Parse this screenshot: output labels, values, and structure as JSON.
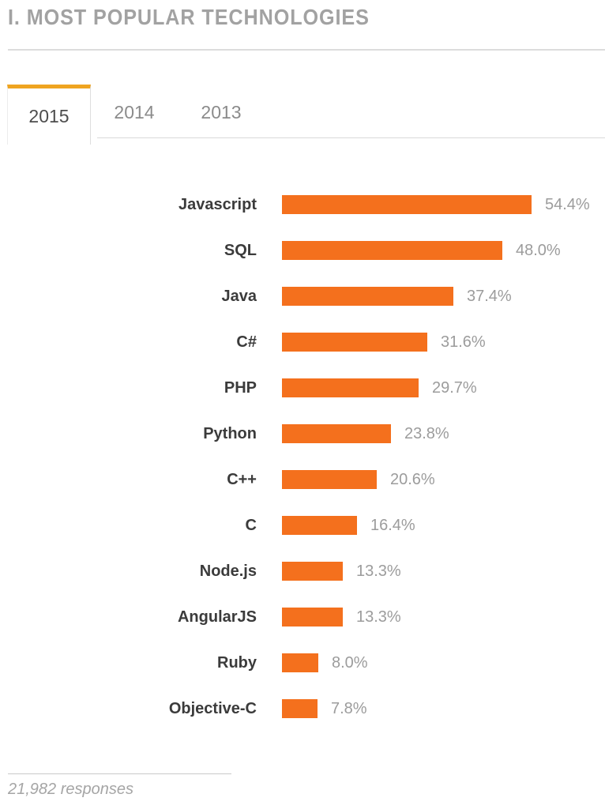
{
  "header": {
    "title": "I. MOST POPULAR TECHNOLOGIES"
  },
  "tabs": [
    {
      "label": "2015",
      "active": true
    },
    {
      "label": "2014",
      "active": false
    },
    {
      "label": "2013",
      "active": false
    }
  ],
  "chart_data": {
    "type": "bar",
    "orientation": "horizontal",
    "title": "I. MOST POPULAR TECHNOLOGIES",
    "categories": [
      "Javascript",
      "SQL",
      "Java",
      "C#",
      "PHP",
      "Python",
      "C++",
      "C",
      "Node.js",
      "AngularJS",
      "Ruby",
      "Objective-C"
    ],
    "values": [
      54.4,
      48.0,
      37.4,
      31.6,
      29.7,
      23.8,
      20.6,
      16.4,
      13.3,
      13.3,
      8.0,
      7.8
    ],
    "value_labels": [
      "54.4%",
      "48.0%",
      "37.4%",
      "31.6%",
      "29.7%",
      "23.8%",
      "20.6%",
      "16.4%",
      "13.3%",
      "13.3%",
      "8.0%",
      "7.8%"
    ],
    "xlim": [
      0,
      60
    ],
    "grid": false,
    "legend": false,
    "bar_color": "#f4701d",
    "accent_tab_color": "#efa420"
  },
  "footer": {
    "responses": "21,982 responses"
  }
}
